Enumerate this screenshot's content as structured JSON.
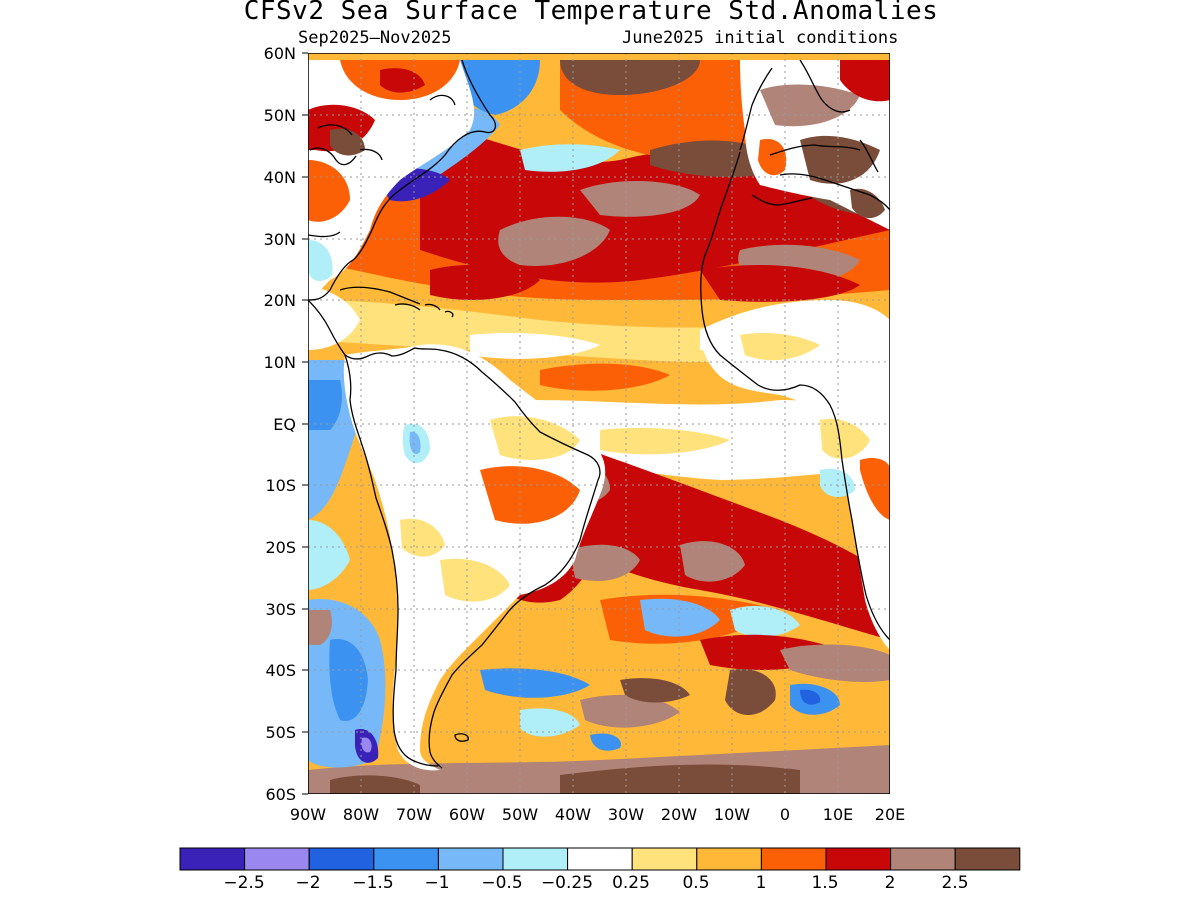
{
  "title": "CFSv2 Sea Surface Temperature Std.Anomalies",
  "period": "Sep2025–Nov2025",
  "initial_conditions": "June2025 initial conditions",
  "lat_labels": [
    "60N",
    "50N",
    "40N",
    "30N",
    "20N",
    "10N",
    "EQ",
    "10S",
    "20S",
    "30S",
    "40S",
    "50S",
    "60S"
  ],
  "lon_labels": [
    "90W",
    "80W",
    "70W",
    "60W",
    "50W",
    "40W",
    "30W",
    "20W",
    "10W",
    "0",
    "10E",
    "20E"
  ],
  "legend": {
    "colors": [
      "#3a22b8",
      "#9a88f0",
      "#2062e0",
      "#3c92f0",
      "#76b8f8",
      "#b0eef8",
      "#ffffff",
      "#ffe27c",
      "#ffb837",
      "#fc6007",
      "#c80808",
      "#b08478",
      "#7a4c3a"
    ],
    "labels": [
      "−2.5",
      "−2",
      "−1.5",
      "−1",
      "−0.5",
      "−0.25",
      "0.25",
      "0.5",
      "1",
      "1.5",
      "2",
      "2.5"
    ]
  },
  "colors": {
    "land": "#ffffff",
    "coast": "#000000",
    "grid": "#9a9a9a"
  }
}
